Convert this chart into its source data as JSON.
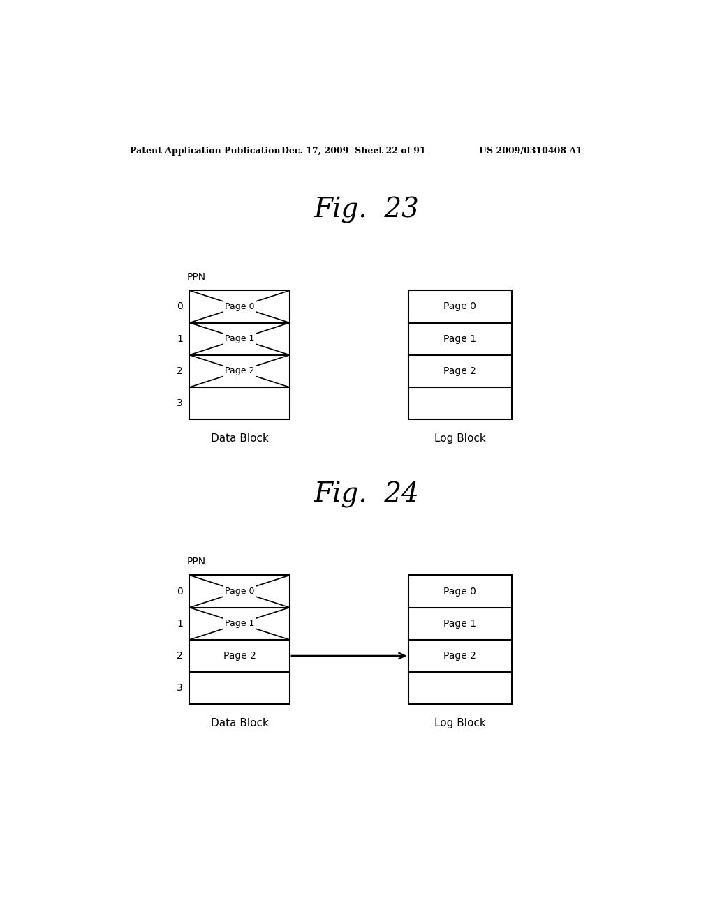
{
  "title_header": "Patent Application Publication",
  "header_date": "Dec. 17, 2009  Sheet 22 of 91",
  "header_patent": "US 2009/0310408 A1",
  "fig23_title": "Fig.  23",
  "fig24_title": "Fig.  24",
  "fig23_data_label": "Data Block",
  "fig23_log_label": "Log Block",
  "fig24_data_label": "Data Block",
  "fig24_log_label": "Log Block",
  "ppn_label": "PPN",
  "page_labels": [
    "Page 0",
    "Page 1",
    "Page 2",
    ""
  ],
  "row_indices": [
    "0",
    "1",
    "2",
    "3"
  ],
  "bg_color": "#ffffff",
  "text_color": "#000000",
  "line_color": "#000000"
}
